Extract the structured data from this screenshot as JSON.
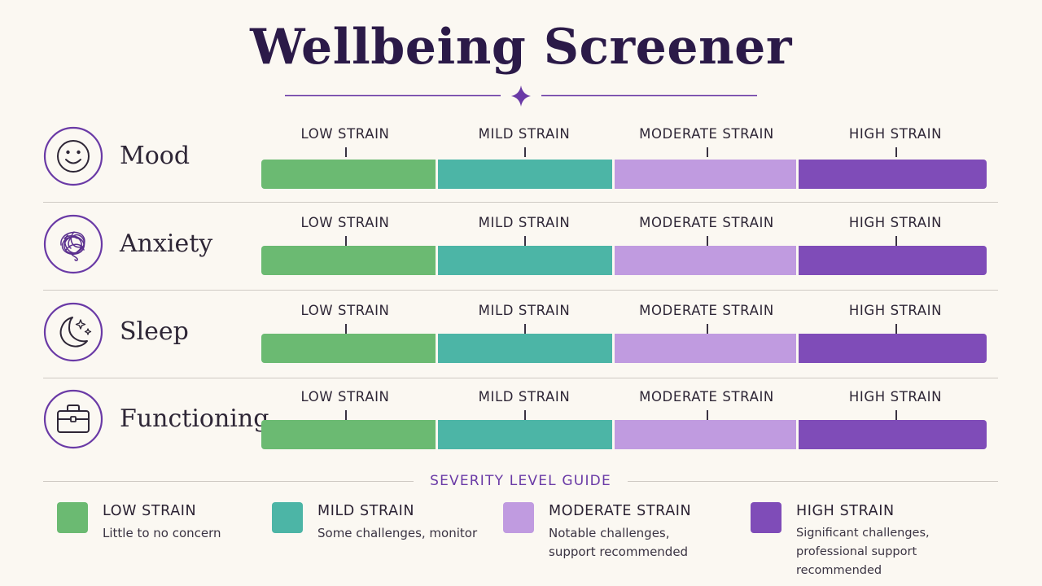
{
  "title": "Wellbeing Screener",
  "colors": {
    "title": "#2b1a48",
    "accent": "#6a3aa6",
    "low": "#6bba72",
    "mild": "#4cb5a6",
    "moderate": "#c09be0",
    "high": "#7f4cb8",
    "background": "#fbf8f2"
  },
  "levels": [
    {
      "key": "low",
      "label": "LOW STRAIN"
    },
    {
      "key": "mild",
      "label": "MILD STRAIN"
    },
    {
      "key": "moderate",
      "label": "MODERATE STRAIN"
    },
    {
      "key": "high",
      "label": "HIGH STRAIN"
    }
  ],
  "rows": [
    {
      "label": "Mood",
      "icon": "smiley-face-icon"
    },
    {
      "label": "Anxiety",
      "icon": "tangled-scribble-icon"
    },
    {
      "label": "Sleep",
      "icon": "moon-stars-icon"
    },
    {
      "label": "Functioning",
      "icon": "briefcase-icon"
    }
  ],
  "guide": {
    "title": "SEVERITY LEVEL GUIDE",
    "items": [
      {
        "name": "LOW STRAIN",
        "desc": "Little to no concern"
      },
      {
        "name": "MILD STRAIN",
        "desc": "Some challenges, monitor"
      },
      {
        "name": "MODERATE STRAIN",
        "desc": "Notable challenges, support recommended"
      },
      {
        "name": "HIGH STRAIN",
        "desc": "Significant challenges, professional support recommended"
      }
    ]
  }
}
